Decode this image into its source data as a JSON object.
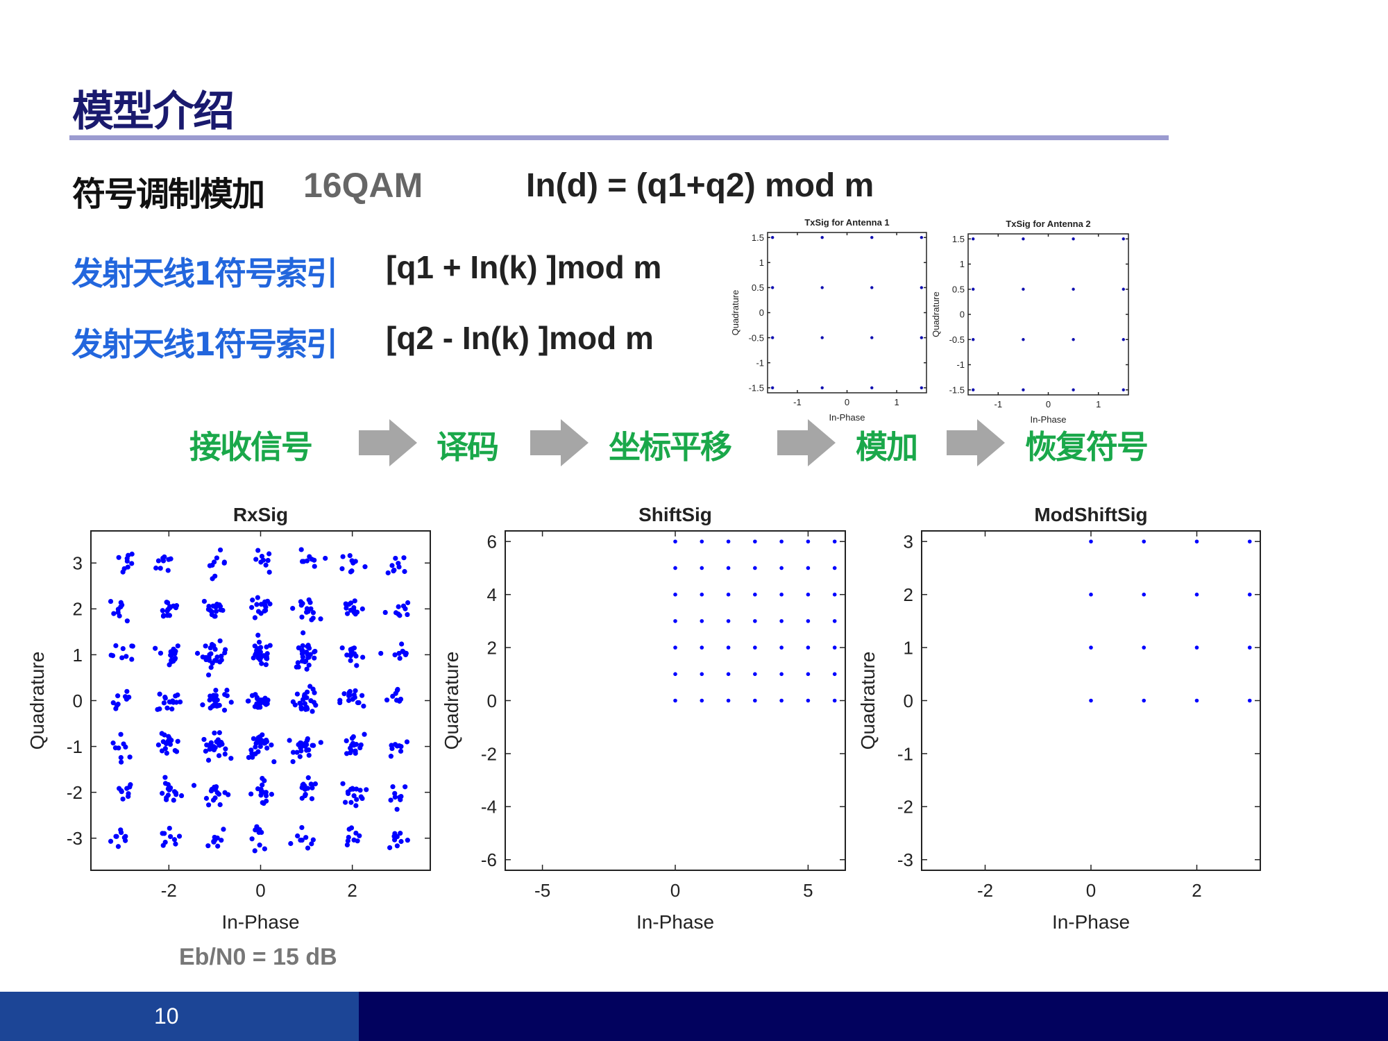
{
  "slide": {
    "title": "模型介绍",
    "row1": {
      "label": "符号调制模加",
      "modulation": "16QAM",
      "formula": "In(d) = (q1+q2) mod m"
    },
    "row2": {
      "label": "发射天线1符号索引",
      "formula": "[q1 + In(k) ]mod m"
    },
    "row3": {
      "label": "发射天线1符号索引",
      "formula": "[q2 - In(k) ]mod m"
    },
    "flow": [
      "接收信号",
      "译码",
      "坐标平移",
      "模加",
      "恢复符号"
    ],
    "snr_label": "Eb/N0 = 15 dB",
    "page_number": "10",
    "colors": {
      "title": "#1a1a6e",
      "rule": "#9b9bd0",
      "blue_text": "#2266dd",
      "green_text": "#1aa84a",
      "arrow": "#a6a6a6",
      "footer_left": "#1c4596",
      "footer_right": "#02025e",
      "marker": "#0000ff"
    }
  },
  "chart_data": [
    {
      "id": "tx1",
      "type": "scatter",
      "title": "TxSig for Antenna 1",
      "xlabel": "In-Phase",
      "ylabel": "Quadrature",
      "xlim": [
        -1.6,
        1.6
      ],
      "ylim": [
        -1.6,
        1.6
      ],
      "xticks": [
        -1,
        0,
        1
      ],
      "yticks": [
        -1.5,
        -1,
        -0.5,
        0,
        0.5,
        1,
        1.5
      ],
      "ytick_labels": [
        "-1.5",
        "-1",
        "-0.5",
        "0",
        "0.5",
        "1",
        "1.5"
      ],
      "grid_x": [
        -1.5,
        -0.5,
        0.5,
        1.5
      ],
      "grid_y": [
        -1.5,
        -0.5,
        0.5,
        1.5
      ],
      "grid": false
    },
    {
      "id": "tx2",
      "type": "scatter",
      "title": "TxSig for Antenna 2",
      "xlabel": "In-Phase",
      "ylabel": "Quadrature",
      "xlim": [
        -1.6,
        1.6
      ],
      "ylim": [
        -1.6,
        1.6
      ],
      "xticks": [
        -1,
        0,
        1
      ],
      "yticks": [
        -1.5,
        -1,
        -0.5,
        0,
        0.5,
        1,
        1.5
      ],
      "ytick_labels": [
        "-1.5",
        "-1",
        "-0.5",
        "0",
        "0.5",
        "1",
        "1.5"
      ],
      "grid_x": [
        -1.5,
        -0.5,
        0.5,
        1.5
      ],
      "grid_y": [
        -1.5,
        -0.5,
        0.5,
        1.5
      ],
      "grid": false
    },
    {
      "id": "rx",
      "type": "scatter",
      "title": "RxSig",
      "xlabel": "In-Phase",
      "ylabel": "Quadrature",
      "xlim": [
        -3.7,
        3.7
      ],
      "ylim": [
        -3.7,
        3.7
      ],
      "xticks": [
        -2,
        0,
        2
      ],
      "yticks": [
        -3,
        -2,
        -1,
        0,
        1,
        2,
        3
      ],
      "ytick_labels": [
        "-3",
        "-2",
        "-1",
        "0",
        "1",
        "2",
        "3"
      ],
      "grid_x": [
        -3,
        -2,
        -1,
        0,
        1,
        2,
        3
      ],
      "grid_y": [
        -3,
        -2,
        -1,
        0,
        1,
        2,
        3
      ],
      "noise_sigma": 0.13,
      "grid": false
    },
    {
      "id": "shift",
      "type": "scatter",
      "title": "ShiftSig",
      "xlabel": "In-Phase",
      "ylabel": "Quadrature",
      "xlim": [
        -6.4,
        6.4
      ],
      "ylim": [
        -6.4,
        6.4
      ],
      "xticks": [
        -5,
        0,
        5
      ],
      "yticks": [
        -6,
        -4,
        -2,
        0,
        2,
        4,
        6
      ],
      "ytick_labels": [
        "-6",
        "-4",
        "-2",
        "0",
        "2",
        "4",
        "6"
      ],
      "grid_x": [
        0,
        1,
        2,
        3,
        4,
        5,
        6
      ],
      "grid_y": [
        0,
        1,
        2,
        3,
        4,
        5,
        6
      ],
      "grid": false
    },
    {
      "id": "modshift",
      "type": "scatter",
      "title": "ModShiftSig",
      "xlabel": "In-Phase",
      "ylabel": "Quadrature",
      "xlim": [
        -3.2,
        3.2
      ],
      "ylim": [
        -3.2,
        3.2
      ],
      "xticks": [
        -2,
        0,
        2
      ],
      "yticks": [
        -3,
        -2,
        -1,
        0,
        1,
        2,
        3
      ],
      "ytick_labels": [
        "-3",
        "-2",
        "-1",
        "0",
        "1",
        "2",
        "3"
      ],
      "grid_x": [
        0,
        1,
        2,
        3
      ],
      "grid_y": [
        0,
        1,
        2,
        3
      ],
      "grid": false
    }
  ]
}
